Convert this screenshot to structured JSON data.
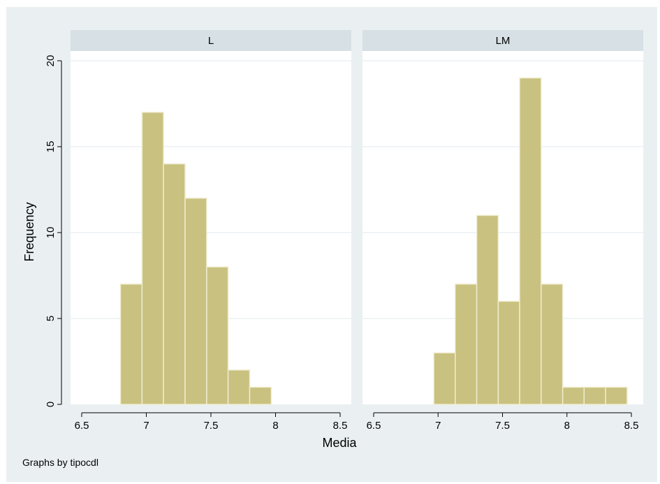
{
  "chart_data": {
    "type": "bar",
    "panels": [
      {
        "name": "L",
        "bin_width": 0.1667,
        "bins": [
          {
            "x0": 6.8,
            "x1": 6.967,
            "count": 7
          },
          {
            "x0": 6.967,
            "x1": 7.133,
            "count": 17
          },
          {
            "x0": 7.133,
            "x1": 7.3,
            "count": 14
          },
          {
            "x0": 7.3,
            "x1": 7.467,
            "count": 12
          },
          {
            "x0": 7.467,
            "x1": 7.633,
            "count": 8
          },
          {
            "x0": 7.633,
            "x1": 7.8,
            "count": 2
          },
          {
            "x0": 7.8,
            "x1": 7.967,
            "count": 1
          }
        ]
      },
      {
        "name": "LM",
        "bin_width": 0.1667,
        "bins": [
          {
            "x0": 6.967,
            "x1": 7.133,
            "count": 3
          },
          {
            "x0": 7.133,
            "x1": 7.3,
            "count": 7
          },
          {
            "x0": 7.3,
            "x1": 7.467,
            "count": 11
          },
          {
            "x0": 7.467,
            "x1": 7.633,
            "count": 6
          },
          {
            "x0": 7.633,
            "x1": 7.8,
            "count": 19
          },
          {
            "x0": 7.8,
            "x1": 7.967,
            "count": 7
          },
          {
            "x0": 7.967,
            "x1": 8.133,
            "count": 1
          },
          {
            "x0": 8.133,
            "x1": 8.3,
            "count": 1
          },
          {
            "x0": 8.3,
            "x1": 8.467,
            "count": 1
          }
        ]
      }
    ],
    "xlabel": "Media",
    "ylabel": "Frequency",
    "xlim": [
      6.5,
      8.5
    ],
    "ylim": [
      0,
      20
    ],
    "xticks": [
      "6.5",
      "7",
      "7.5",
      "8",
      "8.5"
    ],
    "yticks": [
      "0",
      "5",
      "10",
      "15",
      "20"
    ],
    "note": "Graphs by tipocdl",
    "grid": true,
    "colors": {
      "bar": "#c9c17f",
      "bar_edge": "#f0ecd0",
      "background": "#eaf0f2",
      "panel_header": "#d6e0e5",
      "grid": "#e2eaee"
    }
  }
}
